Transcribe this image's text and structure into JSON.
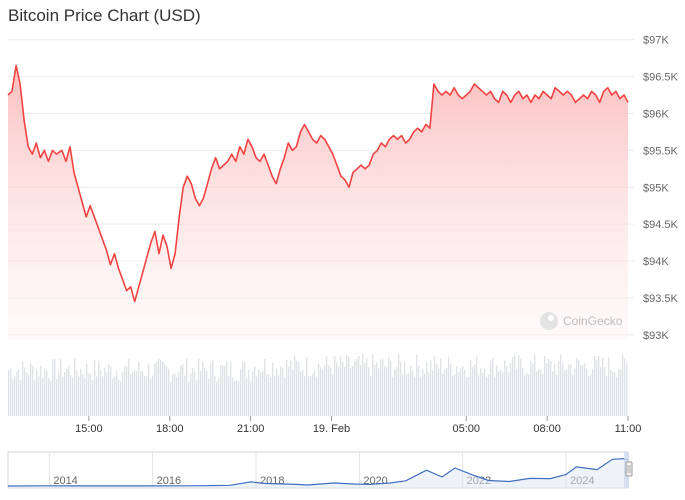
{
  "chart_data": {
    "type": "line",
    "title": "Bitcoin Price Chart (USD)",
    "currency": "USD",
    "watermark": "CoinGecko",
    "colors": {
      "line": "#f24343",
      "fill_top": "#fbbcbc",
      "volume": "#dfe3e8",
      "navigator": "#3f6fbf"
    },
    "y_ticks": [
      "$97K",
      "$96.5K",
      "$96K",
      "$95.5K",
      "$95K",
      "$94.5K",
      "$94K",
      "$93.5K",
      "$93K"
    ],
    "y_tick_values": [
      97000,
      96500,
      96000,
      95500,
      95000,
      94500,
      94000,
      93500,
      93000
    ],
    "ylim": [
      92930,
      97050
    ],
    "xlim": [
      12.0,
      35.0
    ],
    "x_ticks": [
      {
        "label": "15:00",
        "x": 15
      },
      {
        "label": "18:00",
        "x": 18
      },
      {
        "label": "21:00",
        "x": 21
      },
      {
        "label": "19. Feb",
        "x": 24
      },
      {
        "label": "05:00",
        "x": 29
      },
      {
        "label": "08:00",
        "x": 32
      },
      {
        "label": "11:00",
        "x": 35
      }
    ],
    "x_unit": "hours since 00:00 on 18 Feb",
    "series": [
      {
        "points": [
          [
            12.0,
            96250
          ],
          [
            12.15,
            96300
          ],
          [
            12.3,
            96650
          ],
          [
            12.45,
            96400
          ],
          [
            12.6,
            95900
          ],
          [
            12.75,
            95550
          ],
          [
            12.9,
            95450
          ],
          [
            13.05,
            95600
          ],
          [
            13.2,
            95400
          ],
          [
            13.35,
            95500
          ],
          [
            13.5,
            95350
          ],
          [
            13.65,
            95500
          ],
          [
            13.8,
            95450
          ],
          [
            14.0,
            95500
          ],
          [
            14.15,
            95350
          ],
          [
            14.3,
            95550
          ],
          [
            14.45,
            95200
          ],
          [
            14.6,
            95000
          ],
          [
            14.75,
            94800
          ],
          [
            14.9,
            94600
          ],
          [
            15.05,
            94750
          ],
          [
            15.2,
            94600
          ],
          [
            15.35,
            94450
          ],
          [
            15.5,
            94300
          ],
          [
            15.65,
            94150
          ],
          [
            15.8,
            93950
          ],
          [
            15.95,
            94100
          ],
          [
            16.1,
            93900
          ],
          [
            16.25,
            93750
          ],
          [
            16.4,
            93600
          ],
          [
            16.55,
            93650
          ],
          [
            16.7,
            93450
          ],
          [
            16.85,
            93650
          ],
          [
            17.0,
            93850
          ],
          [
            17.15,
            94050
          ],
          [
            17.3,
            94250
          ],
          [
            17.45,
            94400
          ],
          [
            17.6,
            94100
          ],
          [
            17.75,
            94350
          ],
          [
            17.9,
            94200
          ],
          [
            18.05,
            93900
          ],
          [
            18.2,
            94100
          ],
          [
            18.35,
            94600
          ],
          [
            18.5,
            95000
          ],
          [
            18.65,
            95150
          ],
          [
            18.8,
            95050
          ],
          [
            18.95,
            94850
          ],
          [
            19.1,
            94750
          ],
          [
            19.25,
            94850
          ],
          [
            19.4,
            95050
          ],
          [
            19.55,
            95250
          ],
          [
            19.7,
            95400
          ],
          [
            19.85,
            95250
          ],
          [
            20.0,
            95300
          ],
          [
            20.15,
            95350
          ],
          [
            20.3,
            95450
          ],
          [
            20.45,
            95350
          ],
          [
            20.6,
            95550
          ],
          [
            20.75,
            95450
          ],
          [
            20.9,
            95650
          ],
          [
            21.05,
            95550
          ],
          [
            21.2,
            95400
          ],
          [
            21.35,
            95350
          ],
          [
            21.5,
            95450
          ],
          [
            21.65,
            95300
          ],
          [
            21.8,
            95150
          ],
          [
            21.95,
            95050
          ],
          [
            22.1,
            95250
          ],
          [
            22.25,
            95400
          ],
          [
            22.4,
            95600
          ],
          [
            22.55,
            95500
          ],
          [
            22.7,
            95550
          ],
          [
            22.85,
            95750
          ],
          [
            23.0,
            95850
          ],
          [
            23.15,
            95750
          ],
          [
            23.3,
            95650
          ],
          [
            23.45,
            95600
          ],
          [
            23.6,
            95700
          ],
          [
            23.75,
            95650
          ],
          [
            23.9,
            95550
          ],
          [
            24.05,
            95450
          ],
          [
            24.2,
            95300
          ],
          [
            24.35,
            95150
          ],
          [
            24.5,
            95100
          ],
          [
            24.65,
            95000
          ],
          [
            24.8,
            95200
          ],
          [
            24.95,
            95250
          ],
          [
            25.1,
            95300
          ],
          [
            25.25,
            95250
          ],
          [
            25.4,
            95300
          ],
          [
            25.55,
            95450
          ],
          [
            25.7,
            95500
          ],
          [
            25.85,
            95600
          ],
          [
            26.0,
            95550
          ],
          [
            26.15,
            95650
          ],
          [
            26.3,
            95700
          ],
          [
            26.45,
            95650
          ],
          [
            26.6,
            95700
          ],
          [
            26.75,
            95600
          ],
          [
            26.9,
            95650
          ],
          [
            27.05,
            95750
          ],
          [
            27.2,
            95800
          ],
          [
            27.35,
            95750
          ],
          [
            27.5,
            95850
          ],
          [
            27.65,
            95800
          ],
          [
            27.8,
            96400
          ],
          [
            27.95,
            96300
          ],
          [
            28.1,
            96250
          ],
          [
            28.25,
            96300
          ],
          [
            28.4,
            96250
          ],
          [
            28.55,
            96350
          ],
          [
            28.7,
            96250
          ],
          [
            28.85,
            96200
          ],
          [
            29.0,
            96250
          ],
          [
            29.15,
            96300
          ],
          [
            29.3,
            96400
          ],
          [
            29.45,
            96350
          ],
          [
            29.6,
            96300
          ],
          [
            29.75,
            96250
          ],
          [
            29.9,
            96300
          ],
          [
            30.05,
            96200
          ],
          [
            30.2,
            96150
          ],
          [
            30.35,
            96300
          ],
          [
            30.5,
            96250
          ],
          [
            30.65,
            96150
          ],
          [
            30.8,
            96250
          ],
          [
            30.95,
            96300
          ],
          [
            31.1,
            96200
          ],
          [
            31.25,
            96250
          ],
          [
            31.4,
            96150
          ],
          [
            31.55,
            96250
          ],
          [
            31.7,
            96200
          ],
          [
            31.85,
            96300
          ],
          [
            32.0,
            96250
          ],
          [
            32.15,
            96200
          ],
          [
            32.3,
            96350
          ],
          [
            32.45,
            96300
          ],
          [
            32.6,
            96250
          ],
          [
            32.75,
            96300
          ],
          [
            32.9,
            96250
          ],
          [
            33.05,
            96150
          ],
          [
            33.2,
            96200
          ],
          [
            33.35,
            96250
          ],
          [
            33.5,
            96200
          ],
          [
            33.65,
            96300
          ],
          [
            33.8,
            96250
          ],
          [
            33.95,
            96150
          ],
          [
            34.1,
            96300
          ],
          [
            34.25,
            96350
          ],
          [
            34.4,
            96250
          ],
          [
            34.55,
            96300
          ],
          [
            34.7,
            96200
          ],
          [
            34.85,
            96250
          ],
          [
            35.0,
            96150
          ]
        ]
      }
    ],
    "navigator": {
      "ticks": [
        "2014",
        "2016",
        "2018",
        "2020",
        "2022",
        "2024"
      ],
      "xlim": [
        2013.2,
        2025.2
      ],
      "tick_years": [
        2014,
        2016,
        2018,
        2020,
        2022,
        2024
      ],
      "points": [
        [
          2013.2,
          100
        ],
        [
          2013.9,
          800
        ],
        [
          2014.5,
          500
        ],
        [
          2015.0,
          250
        ],
        [
          2015.8,
          400
        ],
        [
          2016.5,
          650
        ],
        [
          2017.0,
          1000
        ],
        [
          2017.5,
          2500
        ],
        [
          2017.9,
          15000
        ],
        [
          2018.2,
          9000
        ],
        [
          2018.8,
          6000
        ],
        [
          2019.0,
          3800
        ],
        [
          2019.5,
          11000
        ],
        [
          2019.9,
          7200
        ],
        [
          2020.2,
          6000
        ],
        [
          2020.6,
          11000
        ],
        [
          2020.9,
          19000
        ],
        [
          2021.3,
          58000
        ],
        [
          2021.6,
          33000
        ],
        [
          2021.85,
          66000
        ],
        [
          2022.2,
          40000
        ],
        [
          2022.5,
          20000
        ],
        [
          2022.9,
          16500
        ],
        [
          2023.3,
          28000
        ],
        [
          2023.7,
          27000
        ],
        [
          2024.0,
          42000
        ],
        [
          2024.2,
          70000
        ],
        [
          2024.6,
          60000
        ],
        [
          2024.9,
          98000
        ],
        [
          2025.1,
          100000
        ],
        [
          2025.2,
          96000
        ]
      ],
      "ylim": [
        0,
        110000
      ]
    }
  }
}
